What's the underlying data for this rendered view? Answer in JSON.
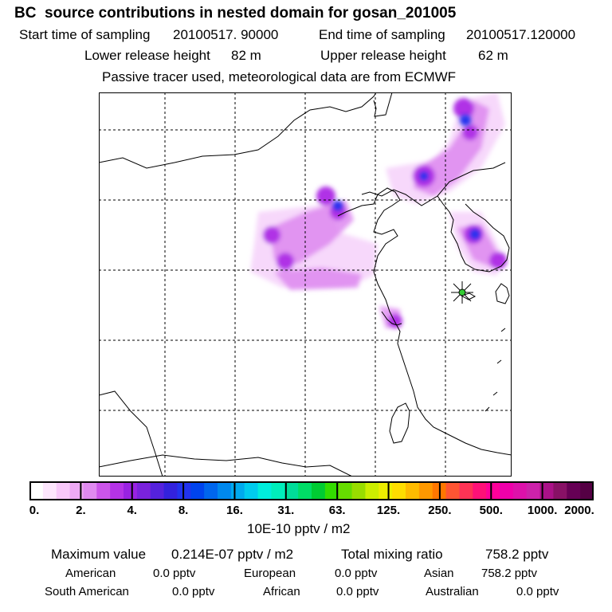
{
  "title": "BC  source contributions in nested domain for gosan_201005",
  "sampling": {
    "start_label": "Start time of sampling",
    "start_value": "20100517. 90000",
    "end_label": "End time of sampling",
    "end_value": "20100517.120000"
  },
  "release": {
    "lower_label": "Lower release height",
    "lower_value": "82 m",
    "upper_label": "Upper release height",
    "upper_value": "62 m"
  },
  "tracer_note": "Passive tracer used, meteorological data are from ECMWF",
  "colorbar": {
    "ticks": [
      "0.",
      "2.",
      "4.",
      "8.",
      "16.",
      "31.",
      "63.",
      "125.",
      "250.",
      "500.",
      "1000.",
      "2000."
    ],
    "colors": [
      "#ffffff",
      "#fde6fd",
      "#f8c8fa",
      "#eeaaf5",
      "#e08af0",
      "#cc55ea",
      "#b433e6",
      "#9922e2",
      "#7a22dd",
      "#5522dd",
      "#3322dd",
      "#2233ee",
      "#0044ee",
      "#0066ee",
      "#0088ee",
      "#00aaee",
      "#00ccee",
      "#00eedd",
      "#00eebb",
      "#00dd99",
      "#00dd66",
      "#00cc33",
      "#33dd00",
      "#66dd00",
      "#99dd00",
      "#ccee00",
      "#eeee00",
      "#ffdd00",
      "#ffbb00",
      "#ff9900",
      "#ff7700",
      "#ff5533",
      "#ff3355",
      "#ff1177",
      "#ff0099",
      "#ee00aa",
      "#dd11aa",
      "#cc22aa",
      "#aa1188",
      "#881166",
      "#660055",
      "#550044"
    ],
    "unit": "10E-10 pptv / m2"
  },
  "map": {
    "plume_color": "#cc44ee",
    "hotspot_color": "#2233ee",
    "marker_color": "#33cc33"
  },
  "summary": {
    "max_label": "Maximum value",
    "max_value": "0.214E-07 pptv / m2",
    "total_label": "Total mixing ratio",
    "total_value": "758.2 pptv"
  },
  "regions": [
    {
      "name": "American",
      "value": "0.0 pptv"
    },
    {
      "name": "European",
      "value": "0.0 pptv"
    },
    {
      "name": "Asian",
      "value": "758.2 pptv"
    },
    {
      "name": "South American",
      "value": "0.0 pptv"
    },
    {
      "name": "African",
      "value": "0.0 pptv"
    },
    {
      "name": "Australian",
      "value": "0.0 pptv"
    }
  ]
}
